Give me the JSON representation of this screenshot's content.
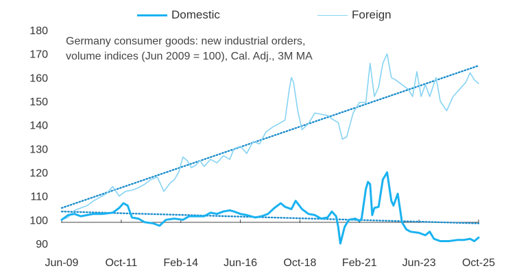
{
  "chart_data": {
    "type": "line",
    "annotation": [
      "Germany consumer goods: new industrial orders,",
      "volume indices (Jun 2009 = 100), Cal. Adj., 3M MA"
    ],
    "x_ticks": [
      "Jun-09",
      "Oct-11",
      "Feb-14",
      "Jun-16",
      "Oct-18",
      "Feb-21",
      "Jun-23",
      "Oct-25"
    ],
    "y_ticks": [
      90,
      100,
      110,
      120,
      130,
      140,
      150,
      160,
      170,
      180
    ],
    "ylim": [
      90,
      180
    ],
    "xlim": [
      "2009-06",
      "2025-10"
    ],
    "legend_position": "top",
    "series": [
      {
        "name": "Domestic",
        "color": "#1ab2f0",
        "points": [
          [
            "2009-06",
            100
          ],
          [
            "2009-09",
            102
          ],
          [
            "2009-12",
            102.5
          ],
          [
            "2010-03",
            101.5
          ],
          [
            "2010-06",
            102
          ],
          [
            "2010-09",
            102.5
          ],
          [
            "2011-01",
            102.5
          ],
          [
            "2011-06",
            103
          ],
          [
            "2011-09",
            105
          ],
          [
            "2011-11",
            107
          ],
          [
            "2012-01",
            106
          ],
          [
            "2012-03",
            101
          ],
          [
            "2012-06",
            100.5
          ],
          [
            "2012-09",
            99
          ],
          [
            "2013-01",
            98.5
          ],
          [
            "2013-04",
            97.5
          ],
          [
            "2013-07",
            100
          ],
          [
            "2013-11",
            100.5
          ],
          [
            "2014-03",
            100
          ],
          [
            "2014-06",
            101.5
          ],
          [
            "2014-09",
            101.5
          ],
          [
            "2015-01",
            101.5
          ],
          [
            "2015-04",
            103
          ],
          [
            "2015-07",
            102.5
          ],
          [
            "2015-10",
            103.5
          ],
          [
            "2016-01",
            104
          ],
          [
            "2016-03",
            103.5
          ],
          [
            "2016-06",
            102.5
          ],
          [
            "2016-09",
            102
          ],
          [
            "2017-01",
            101
          ],
          [
            "2017-04",
            101.5
          ],
          [
            "2017-07",
            102.5
          ],
          [
            "2017-10",
            105
          ],
          [
            "2018-01",
            107
          ],
          [
            "2018-03",
            105.5
          ],
          [
            "2018-06",
            104.5
          ],
          [
            "2018-08",
            108
          ],
          [
            "2018-11",
            104.5
          ],
          [
            "2019-02",
            102.5
          ],
          [
            "2019-05",
            102
          ],
          [
            "2019-08",
            100.5
          ],
          [
            "2019-11",
            101
          ],
          [
            "2020-01",
            103.5
          ],
          [
            "2020-03",
            101.5
          ],
          [
            "2020-04",
            97
          ],
          [
            "2020-05",
            90
          ],
          [
            "2020-07",
            97
          ],
          [
            "2020-09",
            100
          ],
          [
            "2020-12",
            100.5
          ],
          [
            "2021-02",
            99.5
          ],
          [
            "2021-03",
            100.5
          ],
          [
            "2021-05",
            113
          ],
          [
            "2021-06",
            116
          ],
          [
            "2021-07",
            115
          ],
          [
            "2021-08",
            102
          ],
          [
            "2021-09",
            105
          ],
          [
            "2021-11",
            105.5
          ],
          [
            "2022-01",
            117
          ],
          [
            "2022-03",
            120
          ],
          [
            "2022-05",
            108
          ],
          [
            "2022-06",
            106
          ],
          [
            "2022-08",
            111
          ],
          [
            "2022-10",
            99
          ],
          [
            "2022-12",
            96
          ],
          [
            "2023-02",
            95
          ],
          [
            "2023-06",
            94.5
          ],
          [
            "2023-09",
            93.5
          ],
          [
            "2023-11",
            95
          ],
          [
            "2024-01",
            92
          ],
          [
            "2024-04",
            91
          ],
          [
            "2024-08",
            91
          ],
          [
            "2024-12",
            91.5
          ],
          [
            "2025-03",
            91.5
          ],
          [
            "2025-06",
            92
          ],
          [
            "2025-08",
            91
          ],
          [
            "2025-10",
            92.5
          ]
        ]
      },
      {
        "name": "Foreign",
        "color": "#86d3f3",
        "points": [
          [
            "2009-06",
            100
          ],
          [
            "2009-09",
            101
          ],
          [
            "2009-12",
            104
          ],
          [
            "2010-03",
            105
          ],
          [
            "2010-06",
            106
          ],
          [
            "2010-09",
            108
          ],
          [
            "2010-12",
            109.5
          ],
          [
            "2011-03",
            111
          ],
          [
            "2011-06",
            114
          ],
          [
            "2011-09",
            110
          ],
          [
            "2011-12",
            112
          ],
          [
            "2012-03",
            112.5
          ],
          [
            "2012-06",
            113.5
          ],
          [
            "2012-09",
            115
          ],
          [
            "2012-12",
            117
          ],
          [
            "2013-03",
            118
          ],
          [
            "2013-06",
            112
          ],
          [
            "2013-09",
            115.5
          ],
          [
            "2013-11",
            117
          ],
          [
            "2014-01",
            120
          ],
          [
            "2014-03",
            126.5
          ],
          [
            "2014-05",
            125
          ],
          [
            "2014-07",
            122
          ],
          [
            "2014-09",
            123
          ],
          [
            "2014-11",
            125
          ],
          [
            "2015-01",
            122.5
          ],
          [
            "2015-04",
            125.5
          ],
          [
            "2015-07",
            124
          ],
          [
            "2015-10",
            127
          ],
          [
            "2016-01",
            125.5
          ],
          [
            "2016-03",
            130
          ],
          [
            "2016-06",
            131
          ],
          [
            "2016-09",
            128
          ],
          [
            "2016-12",
            133
          ],
          [
            "2017-03",
            132
          ],
          [
            "2017-06",
            137
          ],
          [
            "2017-09",
            139
          ],
          [
            "2017-12",
            140.5
          ],
          [
            "2018-03",
            142
          ],
          [
            "2018-05",
            155
          ],
          [
            "2018-06",
            160
          ],
          [
            "2018-07",
            158
          ],
          [
            "2018-09",
            146
          ],
          [
            "2018-11",
            138
          ],
          [
            "2019-02",
            140.5
          ],
          [
            "2019-05",
            145
          ],
          [
            "2019-08",
            144.5
          ],
          [
            "2019-11",
            144
          ],
          [
            "2020-02",
            142
          ],
          [
            "2020-04",
            141
          ],
          [
            "2020-06",
            134
          ],
          [
            "2020-08",
            135
          ],
          [
            "2020-11",
            145
          ],
          [
            "2021-02",
            149.5
          ],
          [
            "2021-05",
            149.5
          ],
          [
            "2021-07",
            166
          ],
          [
            "2021-09",
            152
          ],
          [
            "2021-11",
            156
          ],
          [
            "2022-01",
            166
          ],
          [
            "2022-03",
            170
          ],
          [
            "2022-05",
            160
          ],
          [
            "2022-07",
            159
          ],
          [
            "2022-10",
            157
          ],
          [
            "2023-01",
            155
          ],
          [
            "2023-03",
            152
          ],
          [
            "2023-05",
            162.5
          ],
          [
            "2023-07",
            152
          ],
          [
            "2023-09",
            157
          ],
          [
            "2023-11",
            152
          ],
          [
            "2024-02",
            160
          ],
          [
            "2024-04",
            150
          ],
          [
            "2024-07",
            146
          ],
          [
            "2024-10",
            152
          ],
          [
            "2025-01",
            155
          ],
          [
            "2025-04",
            158
          ],
          [
            "2025-06",
            162
          ],
          [
            "2025-08",
            159
          ],
          [
            "2025-10",
            157.5
          ]
        ]
      }
    ],
    "trendlines": [
      {
        "of": "Domestic",
        "color": "#1a8ccc",
        "style": "dotted",
        "points": [
          [
            "2009-06",
            103.5
          ],
          [
            "2025-10",
            98.5
          ]
        ]
      },
      {
        "of": "Foreign",
        "color": "#1a8ccc",
        "style": "dotted",
        "points": [
          [
            "2009-06",
            105
          ],
          [
            "2025-10",
            165
          ]
        ]
      }
    ]
  }
}
